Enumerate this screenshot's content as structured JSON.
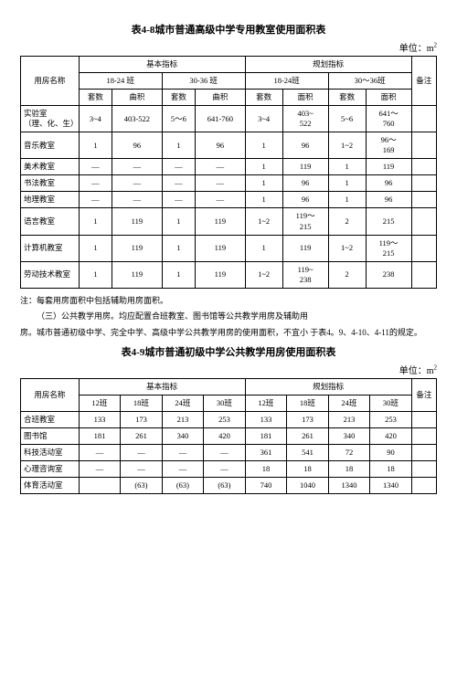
{
  "table48": {
    "title": "表4-8城市普通高级中学专用教室使用面积表",
    "unit_label": "单位：m",
    "headers": {
      "room_name": "用房名称",
      "basic": "基本指标",
      "planned": "规划指标",
      "beizhu": "备注",
      "g1": "18-24 班",
      "g2": "30-36 班",
      "g3": "18-24班",
      "g4": "30～36班",
      "num": "套数",
      "area_a": "曲积",
      "area_b": "面积"
    },
    "rows": [
      {
        "label": "实验室\n（理、化、生）",
        "c": [
          "3~4",
          "403-522",
          "5～6",
          "641-760",
          "3~4",
          "403~\n522",
          "5~6",
          "641～\n760"
        ]
      },
      {
        "label": "音乐教室",
        "c": [
          "1",
          "96",
          "1",
          "96",
          "1",
          "96",
          "1~2",
          "96～\n169"
        ]
      },
      {
        "label": "美术教室",
        "c": [
          "—",
          "—",
          "—",
          "—",
          "1",
          "119",
          "1",
          "119"
        ]
      },
      {
        "label": "书法教室",
        "c": [
          "—",
          "—",
          "—",
          "—",
          "1",
          "96",
          "1",
          "96"
        ]
      },
      {
        "label": "地理教室",
        "c": [
          "—",
          "—",
          "—",
          "—",
          "1",
          "96",
          "1",
          "96"
        ]
      },
      {
        "label": "语言教室",
        "c": [
          "1",
          "119",
          "1",
          "119",
          "1~2",
          "119～\n215",
          "2",
          "215"
        ]
      },
      {
        "label": "计算机教室",
        "c": [
          "1",
          "119",
          "1",
          "119",
          "1",
          "119",
          "1~2",
          "119～\n215"
        ]
      },
      {
        "label": "劳动技术教室",
        "c": [
          "1",
          "119",
          "1",
          "119",
          "1~2",
          "119~\n238",
          "2",
          "238"
        ]
      }
    ]
  },
  "notes": {
    "l1": "注：每套用房面积中包括辅助用房面积。",
    "l2": "（三）公共教学用房。均应配置合班教室、图书馆等公共教学用房及辅助用",
    "l3": "房。城市普通初级中学、完全中学、高级中学公共教学用房的使用面积，不宜小 于表4。9、4-10、4-11的规定。"
  },
  "table49": {
    "title": "表4-9城市普通初级中学公共教学用房使用面积表",
    "unit_label": "单位：m",
    "headers": {
      "room_name": "用房名称",
      "basic": "基本指标",
      "planned": "规划指标",
      "beizhu": "备注",
      "c1": "12班",
      "c2": "18班",
      "c3": "24班",
      "c4": "30班",
      "c5": "12班",
      "c6": "18班",
      "c7": "24班",
      "c8": "30班"
    },
    "rows": [
      {
        "label": "合班教室",
        "c": [
          "133",
          "173",
          "213",
          "253",
          "133",
          "173",
          "213",
          "253"
        ]
      },
      {
        "label": "图书馆",
        "c": [
          "181",
          "261",
          "340",
          "420",
          "181",
          "261",
          "340",
          "420"
        ]
      },
      {
        "label": "科技活动室",
        "c": [
          "—",
          "—",
          "—",
          "—",
          "361",
          "541",
          "72",
          "90"
        ]
      },
      {
        "label": "心理咨询室",
        "c": [
          "—",
          "—",
          "—",
          "—",
          "18",
          "18",
          "18",
          "18"
        ]
      },
      {
        "label": "体育活动室",
        "c": [
          "",
          "(63)",
          "(63)",
          "(63)",
          "740",
          "1040",
          "1340",
          "1340"
        ]
      }
    ]
  }
}
